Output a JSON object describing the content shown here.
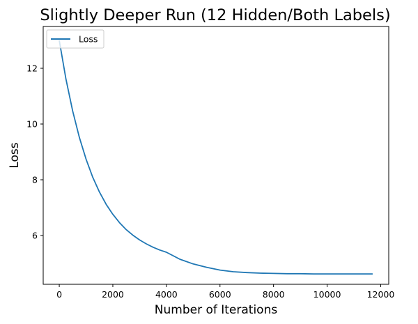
{
  "chart_data": {
    "type": "line",
    "title": "Slightly Deeper Run (12 Hidden/Both Labels)",
    "xlabel": "Number of Iterations",
    "ylabel": "Loss",
    "xlim": [
      -600,
      12300
    ],
    "ylim": [
      4.25,
      13.5
    ],
    "x_ticks": [
      0,
      2000,
      4000,
      6000,
      8000,
      10000,
      12000
    ],
    "y_ticks": [
      6,
      8,
      10,
      12
    ],
    "grid": false,
    "legend": {
      "placement": "upper-left",
      "entries": [
        "Loss"
      ]
    },
    "series": [
      {
        "name": "Loss",
        "color": "#1f77b4",
        "x": [
          0,
          250,
          500,
          750,
          1000,
          1250,
          1500,
          1750,
          2000,
          2250,
          2500,
          2750,
          3000,
          3250,
          3500,
          3750,
          4000,
          4500,
          5000,
          5500,
          6000,
          6500,
          7000,
          7500,
          8000,
          8500,
          9000,
          9500,
          10000,
          10500,
          11000,
          11700
        ],
        "values": [
          13.0,
          11.61,
          10.47,
          9.52,
          8.74,
          8.09,
          7.56,
          7.12,
          6.76,
          6.46,
          6.21,
          6.01,
          5.84,
          5.7,
          5.58,
          5.48,
          5.4,
          5.15,
          4.98,
          4.86,
          4.76,
          4.7,
          4.67,
          4.65,
          4.64,
          4.63,
          4.63,
          4.62,
          4.62,
          4.62,
          4.62,
          4.62
        ]
      }
    ]
  }
}
